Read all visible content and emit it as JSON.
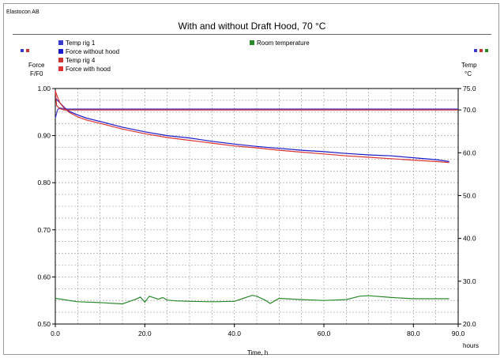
{
  "company": "Elastocon AB",
  "chart_data": {
    "type": "line",
    "title": "With and without Draft Hood, 70 °C",
    "xlabel": "Time, h",
    "xunit": "hours",
    "ylabel_left": [
      "Force",
      "F/F0"
    ],
    "ylabel_right": [
      "Temp",
      "°C"
    ],
    "xlim": [
      0,
      90
    ],
    "ylim_left": [
      0.5,
      1.0
    ],
    "ylim_right": [
      20,
      75
    ],
    "x_ticks": [
      "0.0",
      "20.0",
      "40.0",
      "60.0",
      "80.0",
      "90.0"
    ],
    "y_ticks_left": [
      "0.50",
      "0.60",
      "0.70",
      "0.80",
      "0.90",
      "1.00"
    ],
    "y_ticks_right": [
      "20.0",
      "30.0",
      "40.0",
      "50.0",
      "60.0",
      "70.0",
      "75.0"
    ],
    "grid": true,
    "legend": [
      "Temp rig 1",
      "Force without hood",
      "Temp rig 4",
      "Force with hood",
      "Room temperature"
    ],
    "series": [
      {
        "name": "Temp rig 1",
        "axis": "right",
        "color": "#3a3acc",
        "x": [
          0,
          0.5,
          1,
          2,
          90
        ],
        "y": [
          68.0,
          70.0,
          70.5,
          70.2,
          70.2
        ]
      },
      {
        "name": "Force without hood",
        "axis": "left",
        "color": "#1a1acc",
        "x": [
          0,
          1,
          2,
          3,
          5,
          7,
          10,
          15,
          20,
          25,
          30,
          35,
          40,
          45,
          50,
          55,
          60,
          65,
          70,
          75,
          80,
          85,
          88
        ],
        "y": [
          0.98,
          0.97,
          0.96,
          0.952,
          0.944,
          0.937,
          0.93,
          0.918,
          0.908,
          0.9,
          0.895,
          0.888,
          0.882,
          0.877,
          0.873,
          0.869,
          0.866,
          0.862,
          0.859,
          0.857,
          0.853,
          0.849,
          0.845
        ]
      },
      {
        "name": "Temp rig 4",
        "axis": "right",
        "color": "#cc3333",
        "x": [
          0,
          0.3,
          1,
          2,
          90
        ],
        "y": [
          74.5,
          71.0,
          70.3,
          70.0,
          70.0
        ]
      },
      {
        "name": "Force with hood",
        "axis": "left",
        "color": "#dd3333",
        "x": [
          0,
          0.5,
          1,
          2,
          3,
          5,
          7,
          10,
          15,
          20,
          25,
          30,
          35,
          40,
          45,
          50,
          55,
          60,
          65,
          70,
          75,
          80,
          85,
          88
        ],
        "y": [
          0.995,
          0.982,
          0.97,
          0.958,
          0.95,
          0.94,
          0.933,
          0.926,
          0.914,
          0.904,
          0.896,
          0.89,
          0.884,
          0.878,
          0.874,
          0.869,
          0.865,
          0.861,
          0.857,
          0.854,
          0.851,
          0.848,
          0.845,
          0.843
        ]
      },
      {
        "name": "Room temperature",
        "axis": "right",
        "color": "#2a8a2a",
        "x": [
          0,
          5,
          10,
          15,
          18,
          19,
          20,
          21,
          23,
          24,
          25,
          27,
          30,
          35,
          40,
          42,
          44,
          45,
          47,
          48,
          50,
          55,
          60,
          65,
          68,
          70,
          75,
          80,
          85,
          88
        ],
        "y": [
          26.0,
          25.2,
          25.0,
          24.7,
          25.8,
          26.3,
          25.1,
          26.5,
          25.8,
          26.2,
          25.6,
          25.4,
          25.3,
          25.2,
          25.3,
          26.0,
          26.7,
          26.5,
          25.5,
          24.8,
          26.0,
          25.7,
          25.5,
          25.7,
          26.5,
          26.6,
          26.2,
          25.9,
          25.9,
          25.9
        ]
      }
    ]
  }
}
